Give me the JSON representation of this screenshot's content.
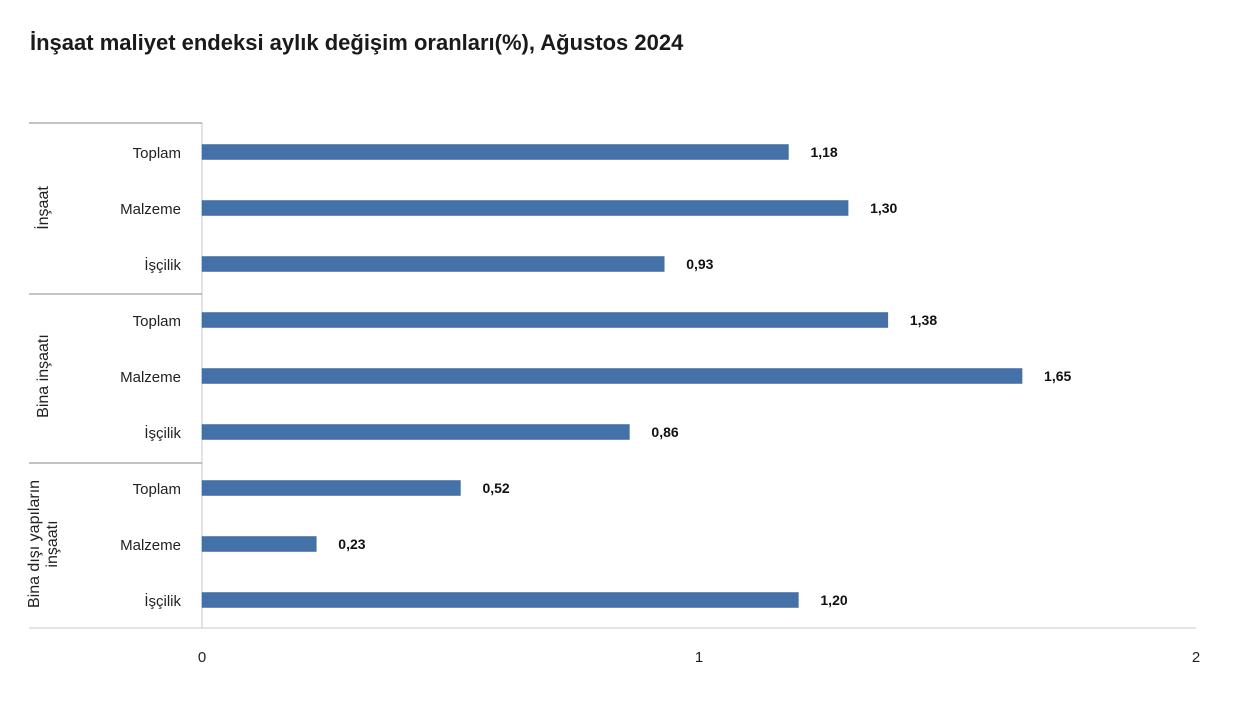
{
  "chart_data": {
    "type": "bar",
    "orientation": "horizontal",
    "title": "İnşaat maliyet endeksi aylık değişim oranları(%), Ağustos 2024",
    "xlim": [
      0,
      2
    ],
    "x_ticks": [
      "0",
      "1",
      "2"
    ],
    "bar_color": "#4472a8",
    "grid": false,
    "groups": [
      {
        "name": "İnşaat",
        "categories": [
          "Toplam",
          "Malzeme",
          "İşçilik"
        ],
        "values": [
          1.18,
          1.3,
          0.93
        ],
        "value_labels": [
          "1,18",
          "1,30",
          "0,93"
        ]
      },
      {
        "name": "Bina inşaatı",
        "categories": [
          "Toplam",
          "Malzeme",
          "İşçilik"
        ],
        "values": [
          1.38,
          1.65,
          0.86
        ],
        "value_labels": [
          "1,38",
          "1,65",
          "0,86"
        ]
      },
      {
        "name": "Bina dışı yapıların inşaatı",
        "name_lines": [
          "Bina dışı yapıların",
          "inşaatı"
        ],
        "categories": [
          "Toplam",
          "Malzeme",
          "İşçilik"
        ],
        "values": [
          0.52,
          0.23,
          1.2
        ],
        "value_labels": [
          "0,52",
          "0,23",
          "1,20"
        ]
      }
    ]
  }
}
